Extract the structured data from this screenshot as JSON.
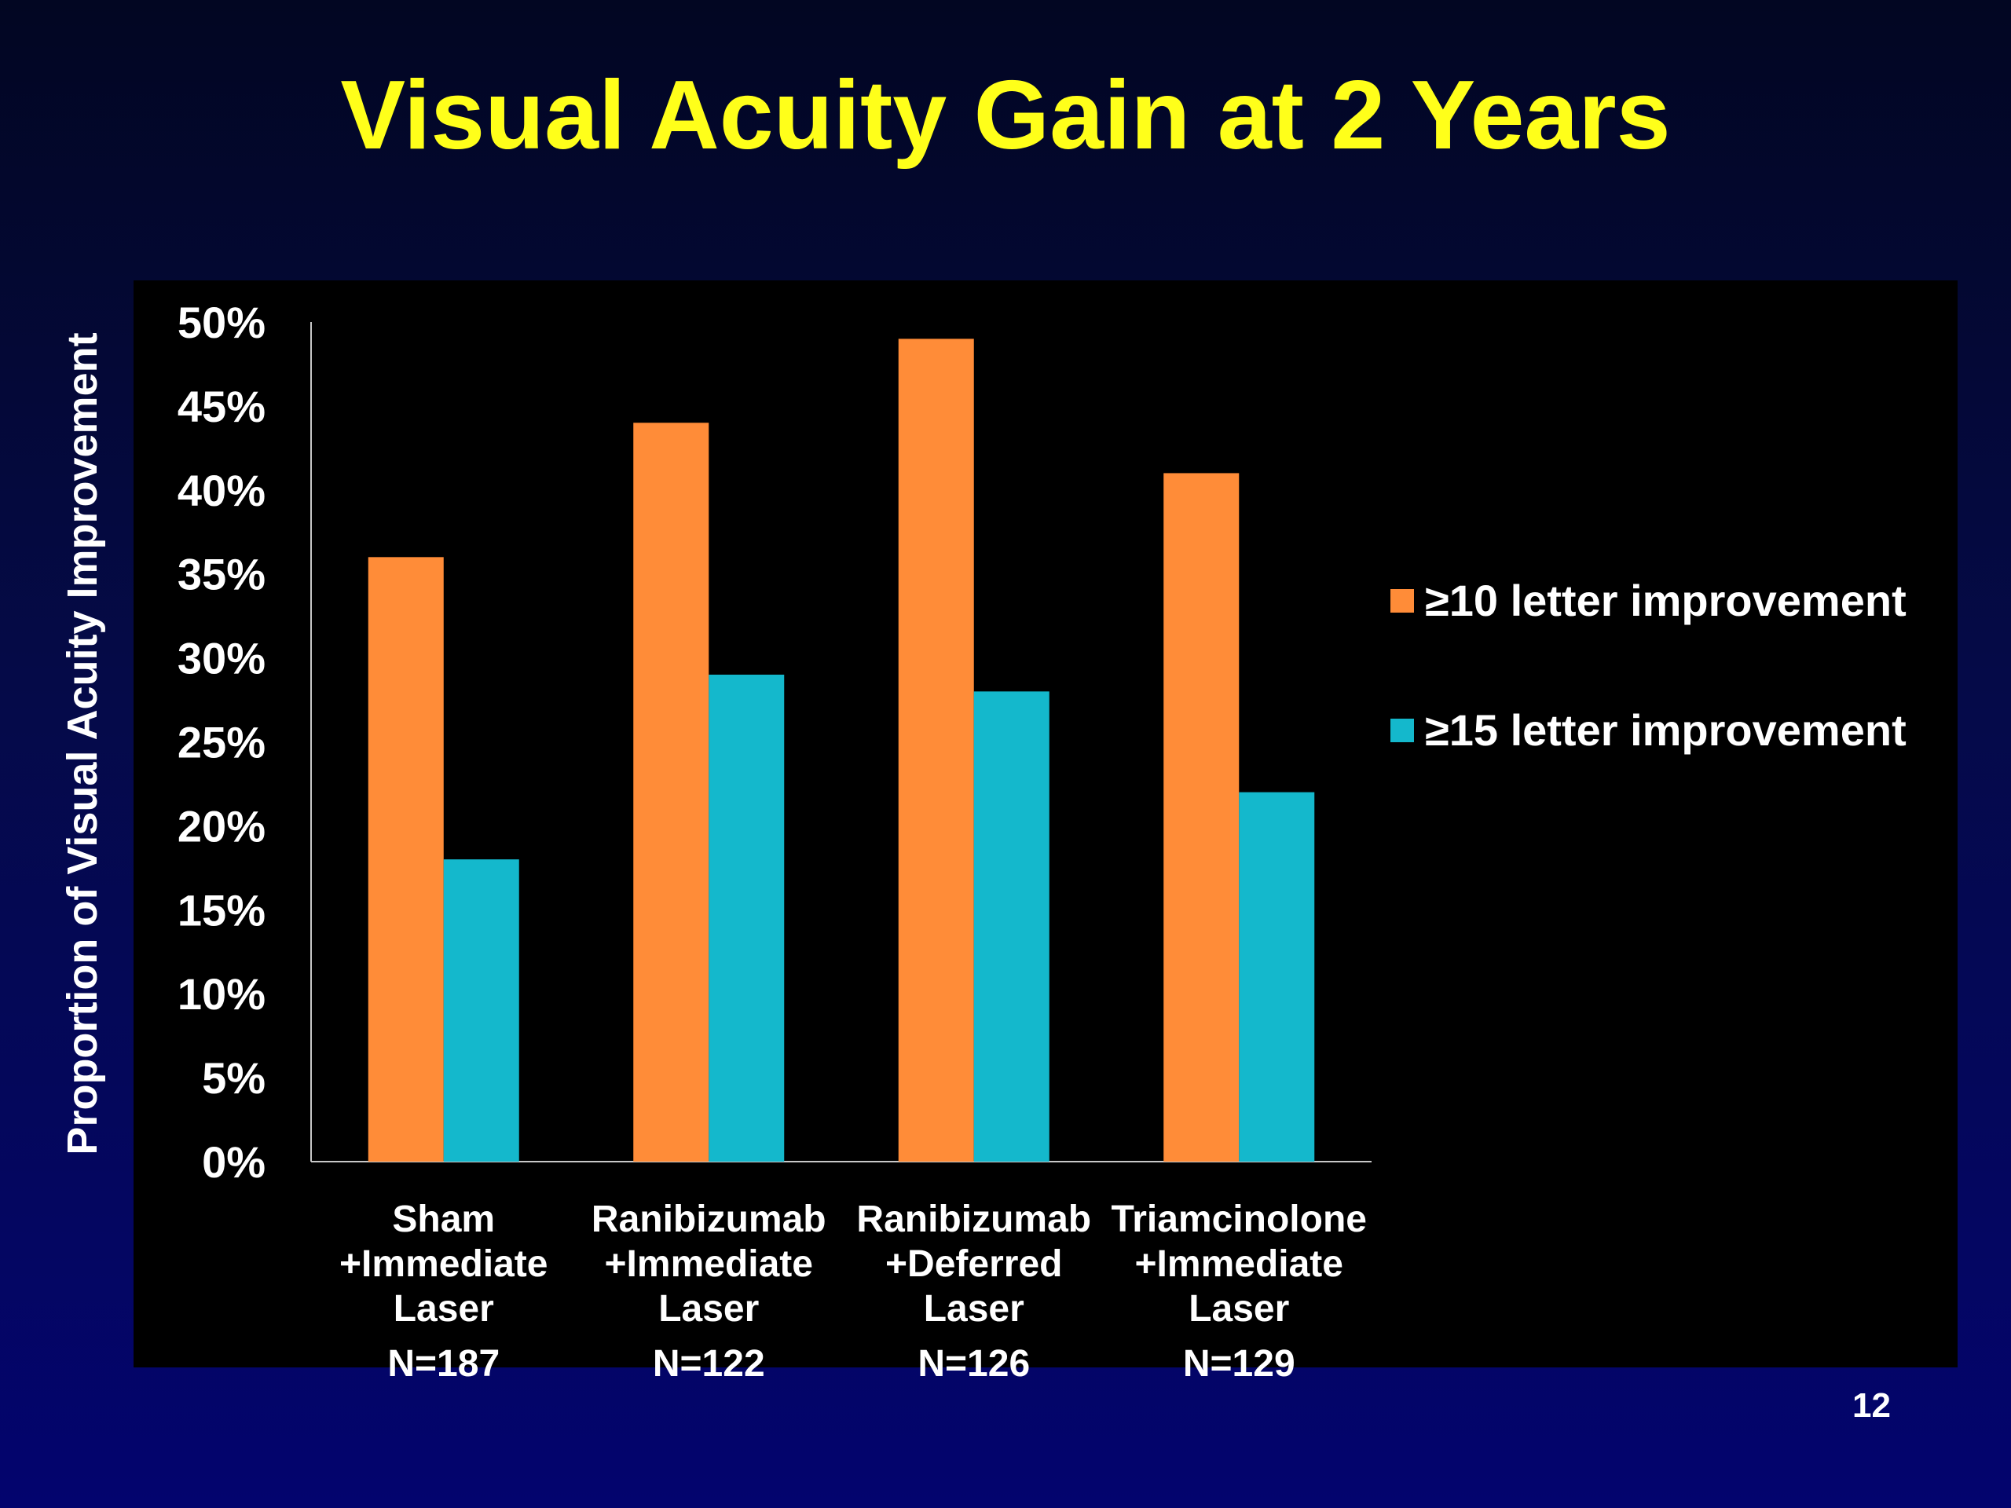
{
  "slide": {
    "title": "Visual Acuity Gain at 2 Years",
    "page_number": "12"
  },
  "colors": {
    "title": "#ffff1a",
    "series_10": "#ff8c38",
    "series_15": "#14b8cc",
    "panel": "#000000",
    "text": "#ffffff"
  },
  "chart_data": {
    "type": "bar",
    "title": "",
    "ylabel": "Proportion of Visual Acuity Improvement",
    "xlabel": "",
    "ylim": [
      0,
      50
    ],
    "y_ticks": [
      "0%",
      "5%",
      "10%",
      "15%",
      "20%",
      "25%",
      "30%",
      "35%",
      "40%",
      "45%",
      "50%"
    ],
    "y_tick_values": [
      0,
      5,
      10,
      15,
      20,
      25,
      30,
      35,
      40,
      45,
      50
    ],
    "categories": [
      {
        "lines": [
          "Sham",
          "+Immediate",
          "Laser"
        ],
        "n": "N=187"
      },
      {
        "lines": [
          "Ranibizumab",
          "+Immediate",
          "Laser"
        ],
        "n": "N=122"
      },
      {
        "lines": [
          "Ranibizumab",
          "+Deferred",
          "Laser"
        ],
        "n": "N=126"
      },
      {
        "lines": [
          "Triamcinolone",
          "+Immediate",
          "Laser"
        ],
        "n": "N=129"
      }
    ],
    "series": [
      {
        "name": "≥10 letter improvement",
        "color": "#ff8c38",
        "values": [
          36,
          44,
          49,
          41
        ]
      },
      {
        "name": "≥15 letter improvement",
        "color": "#14b8cc",
        "values": [
          18,
          29,
          28,
          22
        ]
      }
    ],
    "grid": false,
    "legend_position": "right"
  }
}
